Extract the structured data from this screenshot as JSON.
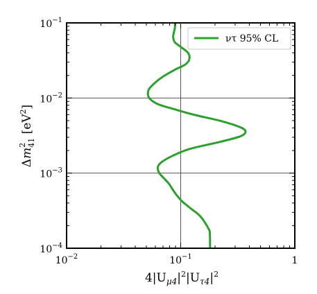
{
  "chart_data": {
    "type": "line",
    "xscale": "log",
    "yscale": "log",
    "xlim": [
      0.01,
      1
    ],
    "ylim": [
      0.0001,
      0.1
    ],
    "grid": true,
    "legend_position": "top-right",
    "xlabel": "4|Uμ4|²|Uτ4|²",
    "ylabel": "Δm²41 [eV²]",
    "x_ticks": [
      {
        "value": 0.01,
        "base": "10",
        "exp": "−2"
      },
      {
        "value": 0.1,
        "base": "10",
        "exp": "−1"
      },
      {
        "value": 1,
        "base": "1",
        "exp": ""
      }
    ],
    "y_ticks": [
      {
        "value": 0.0001,
        "base": "10",
        "exp": "−4"
      },
      {
        "value": 0.001,
        "base": "10",
        "exp": "−3"
      },
      {
        "value": 0.01,
        "base": "10",
        "exp": "−2"
      },
      {
        "value": 0.1,
        "base": "10",
        "exp": "−1"
      }
    ],
    "series": [
      {
        "name": "ντ 95% CL",
        "color": "#2ca02c",
        "points": [
          [
            0.089,
            0.1
          ],
          [
            0.089,
            0.086
          ],
          [
            0.087,
            0.074
          ],
          [
            0.086,
            0.064
          ],
          [
            0.089,
            0.055
          ],
          [
            0.1,
            0.048
          ],
          [
            0.116,
            0.04
          ],
          [
            0.119,
            0.033
          ],
          [
            0.11,
            0.028
          ],
          [
            0.09,
            0.024
          ],
          [
            0.069,
            0.019
          ],
          [
            0.057,
            0.015
          ],
          [
            0.052,
            0.0125
          ],
          [
            0.053,
            0.01
          ],
          [
            0.063,
            0.0083
          ],
          [
            0.085,
            0.0072
          ],
          [
            0.13,
            0.006
          ],
          [
            0.23,
            0.0049
          ],
          [
            0.33,
            0.0041
          ],
          [
            0.37,
            0.0036
          ],
          [
            0.335,
            0.0031
          ],
          [
            0.22,
            0.0026
          ],
          [
            0.12,
            0.0021
          ],
          [
            0.085,
            0.0017
          ],
          [
            0.068,
            0.0014
          ],
          [
            0.063,
            0.0012
          ],
          [
            0.065,
            0.001
          ],
          [
            0.071,
            0.00086
          ],
          [
            0.079,
            0.00072
          ],
          [
            0.086,
            0.00059
          ],
          [
            0.094,
            0.00049
          ],
          [
            0.103,
            0.00042
          ],
          [
            0.114,
            0.00037
          ],
          [
            0.125,
            0.00033
          ],
          [
            0.14,
            0.00029
          ],
          [
            0.154,
            0.00025
          ],
          [
            0.166,
            0.00021
          ],
          [
            0.176,
            0.00018
          ],
          [
            0.18,
            0.00016
          ],
          [
            0.181,
            0.0001
          ]
        ]
      }
    ]
  }
}
